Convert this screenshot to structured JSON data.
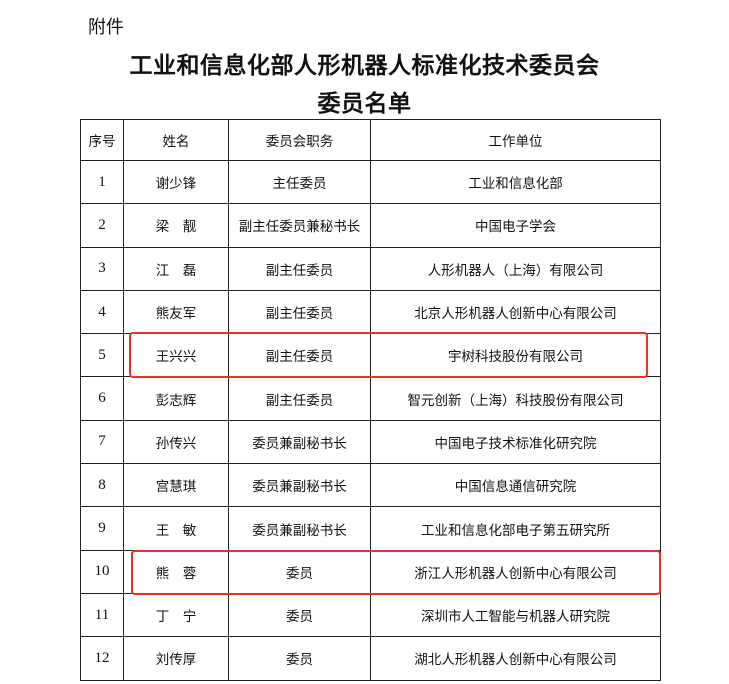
{
  "document": {
    "attachment_label": "附件",
    "title_line1": "工业和信息化部人形机器人标准化技术委员会",
    "title_line2": "委员名单"
  },
  "table": {
    "headers": [
      "序号",
      "姓名",
      "委员会职务",
      "工作单位"
    ],
    "rows": [
      [
        "1",
        "谢少锋",
        "主任委员",
        "工业和信息化部"
      ],
      [
        "2",
        "梁　靓",
        "副主任委员兼秘书长",
        "中国电子学会"
      ],
      [
        "3",
        "江　磊",
        "副主任委员",
        "人形机器人（上海）有限公司"
      ],
      [
        "4",
        "熊友军",
        "副主任委员",
        "北京人形机器人创新中心有限公司"
      ],
      [
        "5",
        "王兴兴",
        "副主任委员",
        "宇树科技股份有限公司"
      ],
      [
        "6",
        "彭志辉",
        "副主任委员",
        "智元创新（上海）科技股份有限公司"
      ],
      [
        "7",
        "孙传兴",
        "委员兼副秘书长",
        "中国电子技术标准化研究院"
      ],
      [
        "8",
        "宫慧琪",
        "委员兼副秘书长",
        "中国信息通信研究院"
      ],
      [
        "9",
        "王　敏",
        "委员兼副秘书长",
        "工业和信息化部电子第五研究所"
      ],
      [
        "10",
        "熊　蓉",
        "委员",
        "浙江人形机器人创新中心有限公司"
      ],
      [
        "11",
        "丁　宁",
        "委员",
        "深圳市人工智能与机器人研究院"
      ],
      [
        "12",
        "刘传厚",
        "委员",
        "湖北人形机器人创新中心有限公司"
      ]
    ],
    "highlighted_rows": [
      "5",
      "10"
    ],
    "highlight_color": "#e8312c"
  }
}
